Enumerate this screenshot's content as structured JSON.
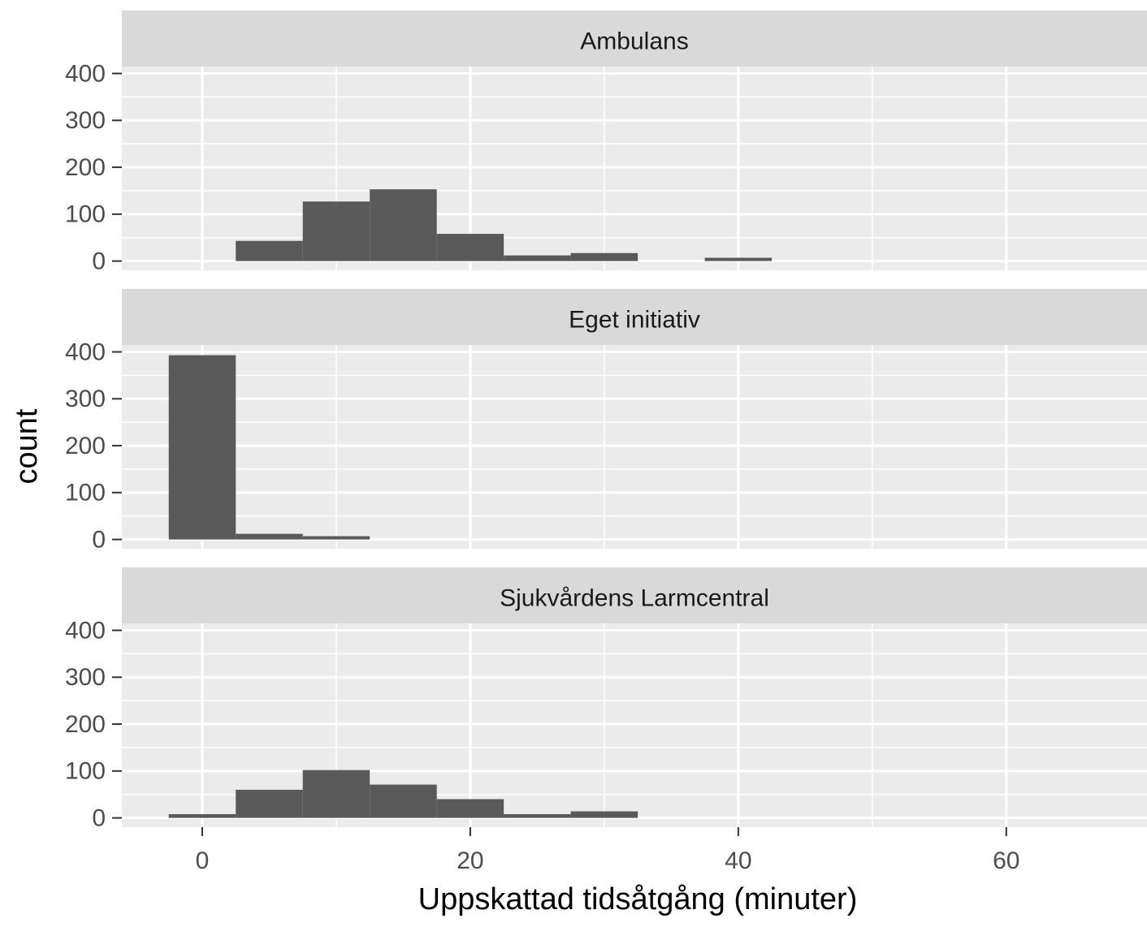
{
  "chart_data": {
    "type": "histogram",
    "xlabel": "Uppskattad tidsåtgång (minuter)",
    "ylabel": "count",
    "bins": [
      -2.5,
      2.5,
      7.5,
      12.5,
      17.5,
      22.5,
      27.5,
      32.5,
      37.5,
      42.5
    ],
    "series": [
      {
        "name": "Ambulans",
        "color": "#595959",
        "values": [
          0,
          43,
          127,
          153,
          58,
          12,
          17,
          0,
          7
        ]
      },
      {
        "name": "Eget initiativ",
        "color": "#595959",
        "values": [
          393,
          12,
          7,
          0,
          0,
          0,
          0,
          0,
          0
        ]
      },
      {
        "name": "Sjukvårdens Larmcentral",
        "color": "#595959",
        "values": [
          8,
          60,
          102,
          71,
          40,
          8,
          14,
          0,
          0
        ]
      }
    ],
    "xlim": [
      -6,
      70.5
    ],
    "xticks": [
      0,
      20,
      40,
      60
    ],
    "ylim": [
      -19.75,
      414.75
    ],
    "yticks": [
      0,
      100,
      200,
      300,
      400
    ],
    "grid": true
  }
}
